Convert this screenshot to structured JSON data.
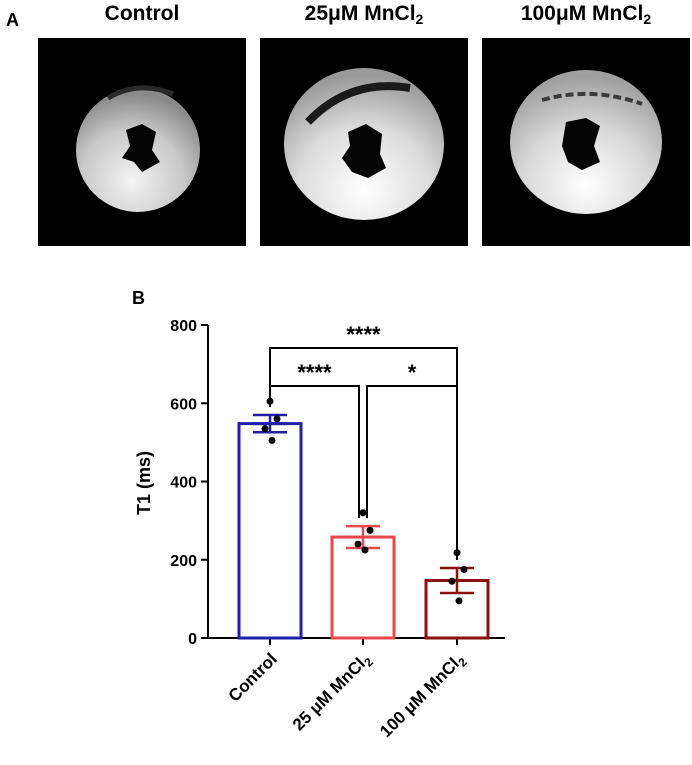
{
  "figure": {
    "panel_a_label": "A",
    "panel_b_label": "B"
  },
  "mri_images": [
    {
      "title_main": "Control",
      "title_sub": ""
    },
    {
      "title_main": "25μM MnCl",
      "title_sub": "2"
    },
    {
      "title_main": "100μM MnCl",
      "title_sub": "2"
    }
  ],
  "chart_data": {
    "type": "bar",
    "title": "",
    "xlabel": "",
    "ylabel": "T1 (ms)",
    "ylim": [
      0,
      800
    ],
    "yticks": [
      0,
      200,
      400,
      600,
      800
    ],
    "grid": false,
    "categories": [
      {
        "main": "Control",
        "sub": ""
      },
      {
        "main": "25 μM MnCl",
        "sub": "2"
      },
      {
        "main": "100 μM MnCl",
        "sub": "2"
      }
    ],
    "values": [
      548,
      258,
      147
    ],
    "errors": [
      22,
      28,
      32
    ],
    "colors": [
      "#1f1fa8",
      "#e8484b",
      "#8b1010"
    ],
    "points": [
      [
        605,
        560,
        535,
        505
      ],
      [
        320,
        275,
        240,
        225
      ],
      [
        218,
        175,
        145,
        95
      ]
    ],
    "significance": [
      {
        "from": 0,
        "to": 2,
        "label": "****"
      },
      {
        "from": 0,
        "to": 1,
        "label": "****"
      },
      {
        "from": 1,
        "to": 2,
        "label": "*"
      }
    ]
  }
}
